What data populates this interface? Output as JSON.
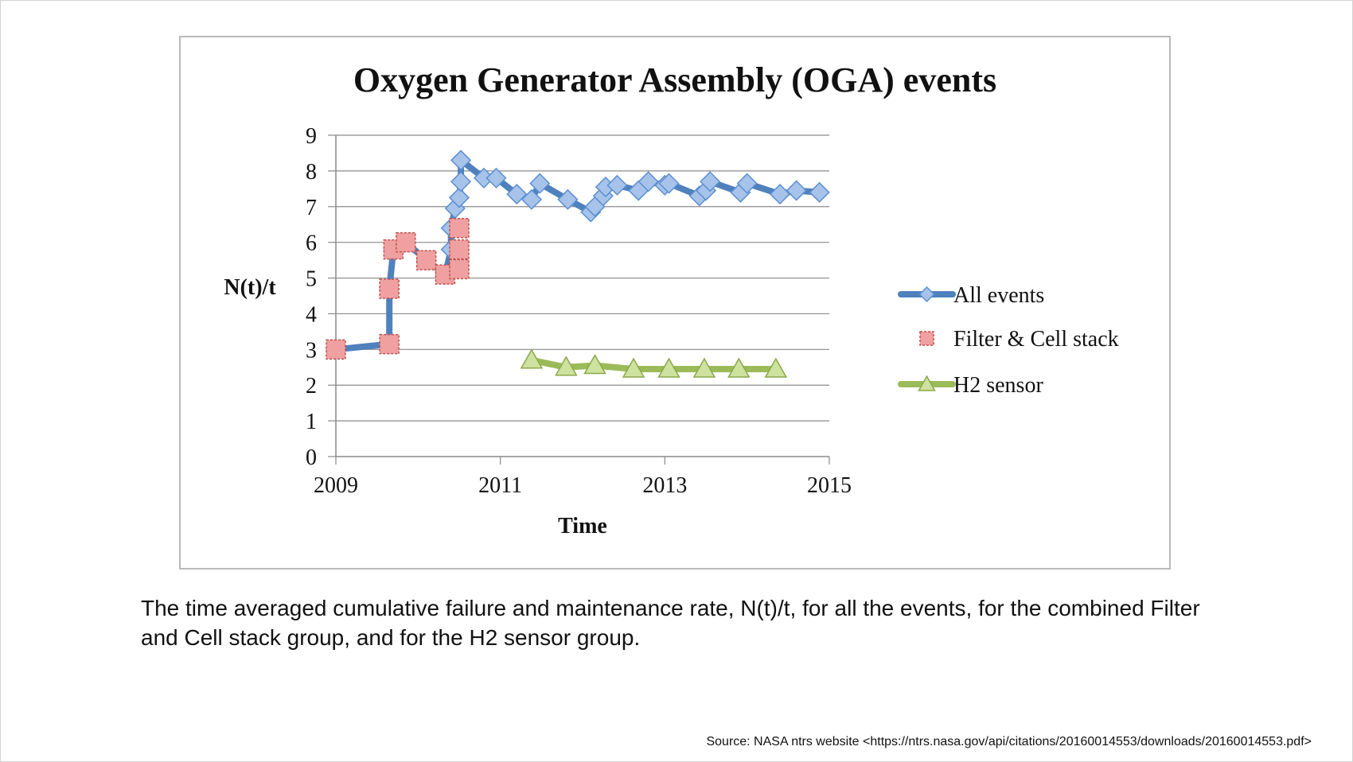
{
  "chart_data": {
    "type": "line",
    "title": "Oxygen Generator Assembly (OGA) events",
    "xlabel": "Time",
    "ylabel": "N(t)/t",
    "xlim": [
      2009,
      2015
    ],
    "ylim": [
      0,
      9
    ],
    "xticks": [
      "2009",
      "2011",
      "2013",
      "2015"
    ],
    "yticks": [
      "0",
      "1",
      "2",
      "3",
      "4",
      "5",
      "6",
      "7",
      "8",
      "9"
    ],
    "grid": true,
    "legend": "right",
    "series": [
      {
        "name": "All events",
        "color": "#4f81bd",
        "marker": "diamond",
        "points": [
          [
            2009.0,
            3.0
          ],
          [
            2009.65,
            3.15
          ],
          [
            2009.65,
            4.7
          ],
          [
            2009.7,
            5.8
          ],
          [
            2009.85,
            6.0
          ],
          [
            2010.1,
            5.5
          ],
          [
            2010.33,
            5.1
          ],
          [
            2010.4,
            5.8
          ],
          [
            2010.4,
            6.4
          ],
          [
            2010.45,
            6.95
          ],
          [
            2010.5,
            7.25
          ],
          [
            2010.52,
            7.7
          ],
          [
            2010.52,
            8.3
          ],
          [
            2010.8,
            7.8
          ],
          [
            2010.95,
            7.8
          ],
          [
            2011.2,
            7.35
          ],
          [
            2011.38,
            7.2
          ],
          [
            2011.48,
            7.65
          ],
          [
            2011.82,
            7.2
          ],
          [
            2012.1,
            6.85
          ],
          [
            2012.15,
            7.0
          ],
          [
            2012.25,
            7.3
          ],
          [
            2012.28,
            7.55
          ],
          [
            2012.42,
            7.6
          ],
          [
            2012.68,
            7.45
          ],
          [
            2012.8,
            7.7
          ],
          [
            2013.0,
            7.6
          ],
          [
            2013.05,
            7.65
          ],
          [
            2013.42,
            7.3
          ],
          [
            2013.5,
            7.45
          ],
          [
            2013.55,
            7.7
          ],
          [
            2013.92,
            7.4
          ],
          [
            2014.0,
            7.65
          ],
          [
            2014.4,
            7.35
          ],
          [
            2014.6,
            7.45
          ],
          [
            2014.88,
            7.4
          ]
        ]
      },
      {
        "name": "Filter & Cell stack",
        "color": "#e06666",
        "marker": "square",
        "points": [
          [
            2009.0,
            3.0
          ],
          [
            2009.65,
            3.15
          ],
          [
            2009.65,
            4.7
          ],
          [
            2009.7,
            5.8
          ],
          [
            2009.85,
            6.0
          ],
          [
            2010.1,
            5.5
          ],
          [
            2010.33,
            5.1
          ],
          [
            2010.5,
            5.25
          ],
          [
            2010.5,
            5.8
          ],
          [
            2010.5,
            6.4
          ]
        ]
      },
      {
        "name": "H2 sensor",
        "color": "#9bbb59",
        "marker": "triangle",
        "points": [
          [
            2011.38,
            2.7
          ],
          [
            2011.8,
            2.5
          ],
          [
            2012.15,
            2.55
          ],
          [
            2012.62,
            2.45
          ],
          [
            2013.05,
            2.45
          ],
          [
            2013.48,
            2.45
          ],
          [
            2013.9,
            2.45
          ],
          [
            2014.35,
            2.45
          ]
        ]
      }
    ]
  },
  "caption": "The time averaged cumulative failure and maintenance rate, N(t)/t, for all the events, for the combined Filter and Cell stack group, and for the H2 sensor group.",
  "source": "Source: NASA ntrs website <https://ntrs.nasa.gov/api/citations/20160014553/downloads/20160014553.pdf>"
}
